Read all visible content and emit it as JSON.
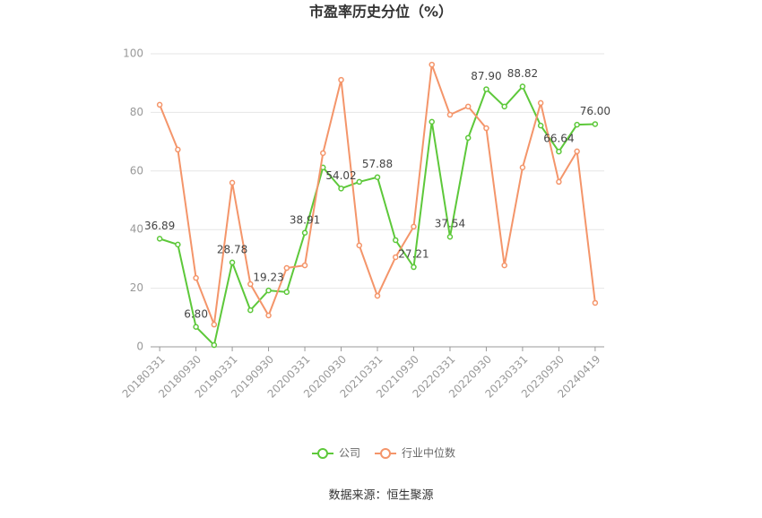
{
  "chart_data": {
    "type": "line",
    "title": "市盈率历史分位（%）",
    "categories": [
      "20180331",
      null,
      "20180930",
      null,
      "20190331",
      null,
      "20190930",
      null,
      "20200331",
      null,
      "20200930",
      null,
      "20210331",
      null,
      "20210930",
      null,
      "20220331",
      null,
      "20220930",
      null,
      "20230331",
      null,
      "20230930",
      null,
      "20240419"
    ],
    "series": [
      {
        "name": "公司",
        "color": "#5dc83a",
        "values": [
          36.89,
          34.9,
          6.8,
          0.6,
          28.78,
          12.5,
          19.23,
          18.7,
          38.91,
          61.2,
          54.02,
          56.3,
          57.88,
          36.4,
          27.21,
          76.8,
          37.54,
          71.3,
          87.9,
          82.0,
          88.82,
          75.5,
          66.64,
          75.8,
          76.0
        ],
        "value_labels": [
          "36.89",
          null,
          "6.80",
          null,
          "28.78",
          null,
          "19.23",
          null,
          "38.91",
          null,
          "54.02",
          null,
          "57.88",
          null,
          "27.21",
          null,
          "37.54",
          null,
          "87.90",
          null,
          "88.82",
          null,
          "66.64",
          null,
          "76.00"
        ]
      },
      {
        "name": "行业中位数",
        "color": "#f4956a",
        "values": [
          82.6,
          67.3,
          23.5,
          7.6,
          56.0,
          21.4,
          10.7,
          26.9,
          27.8,
          66.1,
          91.1,
          34.6,
          17.4,
          30.6,
          41.0,
          96.3,
          79.2,
          82.0,
          74.6,
          27.8,
          61.2,
          83.2,
          56.3,
          66.7,
          15.0
        ]
      }
    ],
    "ylim": [
      0,
      100
    ],
    "yticks": [
      0,
      20,
      40,
      60,
      80,
      100
    ],
    "grid": true,
    "legend": "bottom",
    "source": "数据来源：恒生聚源"
  }
}
